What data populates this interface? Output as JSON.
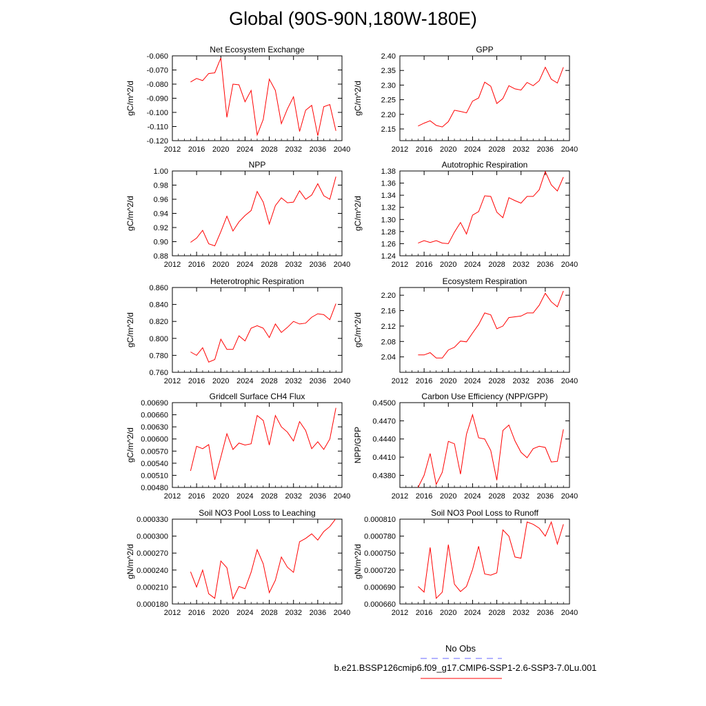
{
  "title": "Global (90S-90N,180W-180E)",
  "colors": {
    "series": "#ff0000",
    "obs": "#6666ff",
    "axis": "#000000"
  },
  "legend": {
    "obs_label": "No Obs",
    "case_label": "b.e21.BSSP126cmip6.f09_g17.CMIP6-SSP1-2.6-SSP3-7.0Lu.001"
  },
  "chart_data": [
    {
      "type": "line",
      "title": "Net Ecosystem Exchange",
      "ylabel": "gC/m^2/d",
      "xlim": [
        2012,
        2040
      ],
      "xticks": [
        "2012",
        "2016",
        "2020",
        "2024",
        "2028",
        "2032",
        "2036",
        "2040"
      ],
      "ylim": [
        -0.12,
        -0.06
      ],
      "yticks": [
        "-0.060",
        "-0.070",
        "-0.080",
        "-0.090",
        "-0.100",
        "-0.110",
        "-0.120"
      ],
      "x": [
        2015,
        2016,
        2017,
        2018,
        2019,
        2020,
        2021,
        2022,
        2023,
        2024,
        2025,
        2026,
        2027,
        2028,
        2029,
        2030,
        2031,
        2032,
        2033,
        2034,
        2035,
        2036,
        2037,
        2038,
        2039
      ],
      "values": [
        -0.0785,
        -0.076,
        -0.0775,
        -0.0725,
        -0.072,
        -0.0615,
        -0.1035,
        -0.08,
        -0.0805,
        -0.0925,
        -0.0845,
        -0.116,
        -0.105,
        -0.0765,
        -0.0845,
        -0.108,
        -0.0975,
        -0.089,
        -0.1135,
        -0.0985,
        -0.095,
        -0.1165,
        -0.096,
        -0.0945,
        -0.113
      ]
    },
    {
      "type": "line",
      "title": "GPP",
      "ylabel": "gC/m^2/d",
      "xlim": [
        2012,
        2040
      ],
      "xticks": [
        "2012",
        "2016",
        "2020",
        "2024",
        "2028",
        "2032",
        "2036",
        "2040"
      ],
      "ylim": [
        2.11,
        2.4
      ],
      "yticks": [
        "2.40",
        "2.35",
        "2.30",
        "2.25",
        "2.20",
        "2.15"
      ],
      "x": [
        2015,
        2016,
        2017,
        2018,
        2019,
        2020,
        2021,
        2022,
        2023,
        2024,
        2025,
        2026,
        2027,
        2028,
        2029,
        2030,
        2031,
        2032,
        2033,
        2034,
        2035,
        2036,
        2037,
        2038,
        2039
      ],
      "values": [
        2.16,
        2.17,
        2.178,
        2.162,
        2.157,
        2.175,
        2.214,
        2.21,
        2.205,
        2.245,
        2.256,
        2.31,
        2.296,
        2.237,
        2.254,
        2.298,
        2.287,
        2.283,
        2.309,
        2.298,
        2.315,
        2.361,
        2.32,
        2.307,
        2.361
      ]
    },
    {
      "type": "line",
      "title": "NPP",
      "ylabel": "gC/m^2/d",
      "xlim": [
        2012,
        2040
      ],
      "xticks": [
        "2012",
        "2016",
        "2020",
        "2024",
        "2028",
        "2032",
        "2036",
        "2040"
      ],
      "ylim": [
        0.88,
        1.0
      ],
      "yticks": [
        "1.00",
        "0.98",
        "0.96",
        "0.94",
        "0.92",
        "0.90",
        "0.88"
      ],
      "x": [
        2015,
        2016,
        2017,
        2018,
        2019,
        2020,
        2021,
        2022,
        2023,
        2024,
        2025,
        2026,
        2027,
        2028,
        2029,
        2030,
        2031,
        2032,
        2033,
        2034,
        2035,
        2036,
        2037,
        2038,
        2039
      ],
      "values": [
        0.899,
        0.905,
        0.916,
        0.897,
        0.894,
        0.914,
        0.936,
        0.915,
        0.928,
        0.937,
        0.944,
        0.971,
        0.956,
        0.925,
        0.951,
        0.962,
        0.955,
        0.956,
        0.972,
        0.96,
        0.966,
        0.982,
        0.965,
        0.96,
        0.992
      ]
    },
    {
      "type": "line",
      "title": "Autotrophic Respiration",
      "ylabel": "gC/m^2/d",
      "xlim": [
        2012,
        2040
      ],
      "xticks": [
        "2012",
        "2016",
        "2020",
        "2024",
        "2028",
        "2032",
        "2036",
        "2040"
      ],
      "ylim": [
        1.24,
        1.38
      ],
      "yticks": [
        "1.38",
        "1.36",
        "1.34",
        "1.32",
        "1.30",
        "1.28",
        "1.26",
        "1.24"
      ],
      "x": [
        2015,
        2016,
        2017,
        2018,
        2019,
        2020,
        2021,
        2022,
        2023,
        2024,
        2025,
        2026,
        2027,
        2028,
        2029,
        2030,
        2031,
        2032,
        2033,
        2034,
        2035,
        2036,
        2037,
        2038,
        2039
      ],
      "values": [
        1.261,
        1.265,
        1.262,
        1.265,
        1.261,
        1.26,
        1.279,
        1.295,
        1.276,
        1.307,
        1.313,
        1.339,
        1.338,
        1.312,
        1.303,
        1.336,
        1.331,
        1.327,
        1.338,
        1.338,
        1.349,
        1.379,
        1.357,
        1.347,
        1.37
      ]
    },
    {
      "type": "line",
      "title": "Heterotrophic Respiration",
      "ylabel": "gC/m^2/d",
      "xlim": [
        2012,
        2040
      ],
      "xticks": [
        "2012",
        "2016",
        "2020",
        "2024",
        "2028",
        "2032",
        "2036",
        "2040"
      ],
      "ylim": [
        0.76,
        0.86
      ],
      "yticks": [
        "0.860",
        "0.840",
        "0.820",
        "0.800",
        "0.780",
        "0.760"
      ],
      "x": [
        2015,
        2016,
        2017,
        2018,
        2019,
        2020,
        2021,
        2022,
        2023,
        2024,
        2025,
        2026,
        2027,
        2028,
        2029,
        2030,
        2031,
        2032,
        2033,
        2034,
        2035,
        2036,
        2037,
        2038,
        2039
      ],
      "values": [
        0.784,
        0.78,
        0.789,
        0.772,
        0.775,
        0.799,
        0.787,
        0.787,
        0.803,
        0.797,
        0.812,
        0.815,
        0.812,
        0.801,
        0.817,
        0.807,
        0.813,
        0.82,
        0.817,
        0.818,
        0.825,
        0.829,
        0.828,
        0.822,
        0.841
      ]
    },
    {
      "type": "line",
      "title": "Ecosystem Respiration",
      "ylabel": "gC/m^2/d",
      "xlim": [
        2012,
        2040
      ],
      "xticks": [
        "2012",
        "2016",
        "2020",
        "2024",
        "2028",
        "2032",
        "2036",
        "2040"
      ],
      "ylim": [
        2.0,
        2.22
      ],
      "yticks": [
        "2.20",
        "2.16",
        "2.12",
        "2.08",
        "2.04"
      ],
      "x": [
        2015,
        2016,
        2017,
        2018,
        2019,
        2020,
        2021,
        2022,
        2023,
        2024,
        2025,
        2026,
        2027,
        2028,
        2029,
        2030,
        2031,
        2032,
        2033,
        2034,
        2035,
        2036,
        2037,
        2038,
        2039
      ],
      "values": [
        2.045,
        2.045,
        2.051,
        2.037,
        2.037,
        2.058,
        2.065,
        2.081,
        2.079,
        2.102,
        2.124,
        2.154,
        2.149,
        2.113,
        2.12,
        2.142,
        2.144,
        2.146,
        2.154,
        2.154,
        2.174,
        2.205,
        2.183,
        2.17,
        2.211
      ]
    },
    {
      "type": "line",
      "title": "Gridcell Surface CH4 Flux",
      "ylabel": "gC/m^2/d",
      "xlim": [
        2012,
        2040
      ],
      "xticks": [
        "2012",
        "2016",
        "2020",
        "2024",
        "2028",
        "2032",
        "2036",
        "2040"
      ],
      "ylim": [
        0.0048,
        0.0069
      ],
      "yticks": [
        "0.00690",
        "0.00660",
        "0.00630",
        "0.00600",
        "0.00570",
        "0.00540",
        "0.00510",
        "0.00480"
      ],
      "x": [
        2015,
        2016,
        2017,
        2018,
        2019,
        2020,
        2021,
        2022,
        2023,
        2024,
        2025,
        2026,
        2027,
        2028,
        2029,
        2030,
        2031,
        2032,
        2033,
        2034,
        2035,
        2036,
        2037,
        2038,
        2039
      ],
      "values": [
        0.00521,
        0.00582,
        0.00576,
        0.00586,
        0.00499,
        0.00555,
        0.00613,
        0.00574,
        0.0059,
        0.00585,
        0.00588,
        0.00658,
        0.00646,
        0.00585,
        0.00658,
        0.0063,
        0.00617,
        0.00595,
        0.00643,
        0.00621,
        0.00576,
        0.00593,
        0.00574,
        0.006,
        0.00677
      ]
    },
    {
      "type": "line",
      "title": "Carbon Use Efficiency (NPP/GPP)",
      "ylabel": "NPP/GPP",
      "xlim": [
        2012,
        2040
      ],
      "xticks": [
        "2012",
        "2016",
        "2020",
        "2024",
        "2028",
        "2032",
        "2036",
        "2040"
      ],
      "ylim": [
        0.436,
        0.45
      ],
      "yticks": [
        "0.4500",
        "0.4470",
        "0.4440",
        "0.4410",
        "0.4380"
      ],
      "x": [
        2015,
        2016,
        2017,
        2018,
        2019,
        2020,
        2021,
        2022,
        2023,
        2024,
        2025,
        2026,
        2027,
        2028,
        2029,
        2030,
        2031,
        2032,
        2033,
        2034,
        2035,
        2036,
        2037,
        2038,
        2039
      ],
      "values": [
        0.436,
        0.438,
        0.4416,
        0.4365,
        0.4385,
        0.4436,
        0.4432,
        0.4382,
        0.4448,
        0.448,
        0.4442,
        0.444,
        0.4421,
        0.4372,
        0.4454,
        0.4463,
        0.4437,
        0.4418,
        0.4409,
        0.4424,
        0.4428,
        0.4426,
        0.4402,
        0.4403,
        0.4456
      ]
    },
    {
      "type": "line",
      "title": "Soil NO3 Pool Loss to Leaching",
      "ylabel": "gN/m^2/d",
      "xlim": [
        2012,
        2040
      ],
      "xticks": [
        "2012",
        "2016",
        "2020",
        "2024",
        "2028",
        "2032",
        "2036",
        "2040"
      ],
      "ylim": [
        0.00018,
        0.00033
      ],
      "yticks": [
        "0.000330",
        "0.000300",
        "0.000270",
        "0.000240",
        "0.000210",
        "0.000180"
      ],
      "x": [
        2015,
        2016,
        2017,
        2018,
        2019,
        2020,
        2021,
        2022,
        2023,
        2024,
        2025,
        2026,
        2027,
        2028,
        2029,
        2030,
        2031,
        2032,
        2033,
        2034,
        2035,
        2036,
        2037,
        2038,
        2039
      ],
      "values": [
        0.000237,
        0.00021,
        0.00024,
        0.000198,
        0.00019,
        0.000256,
        0.000244,
        0.000189,
        0.000211,
        0.000207,
        0.000236,
        0.000276,
        0.000251,
        0.0002,
        0.000222,
        0.000263,
        0.000245,
        0.000236,
        0.00029,
        0.000296,
        0.000304,
        0.000293,
        0.000308,
        0.000317,
        0.000331
      ]
    },
    {
      "type": "line",
      "title": "Soil NO3 Pool Loss to Runoff",
      "ylabel": "gN/m^2/d",
      "xlim": [
        2012,
        2040
      ],
      "xticks": [
        "2012",
        "2016",
        "2020",
        "2024",
        "2028",
        "2032",
        "2036",
        "2040"
      ],
      "ylim": [
        0.00066,
        0.00081
      ],
      "yticks": [
        "0.000810",
        "0.000780",
        "0.000750",
        "0.000720",
        "0.000690",
        "0.000660"
      ],
      "x": [
        2015,
        2016,
        2017,
        2018,
        2019,
        2020,
        2021,
        2022,
        2023,
        2024,
        2025,
        2026,
        2027,
        2028,
        2029,
        2030,
        2031,
        2032,
        2033,
        2034,
        2035,
        2036,
        2037,
        2038,
        2039
      ],
      "values": [
        0.000691,
        0.000681,
        0.00076,
        0.00067,
        0.000681,
        0.000765,
        0.000695,
        0.000682,
        0.000691,
        0.000721,
        0.000762,
        0.000713,
        0.000711,
        0.000715,
        0.000791,
        0.00078,
        0.000743,
        0.000741,
        0.000805,
        0.000801,
        0.000794,
        0.00078,
        0.000805,
        0.000766,
        0.000801
      ]
    }
  ]
}
